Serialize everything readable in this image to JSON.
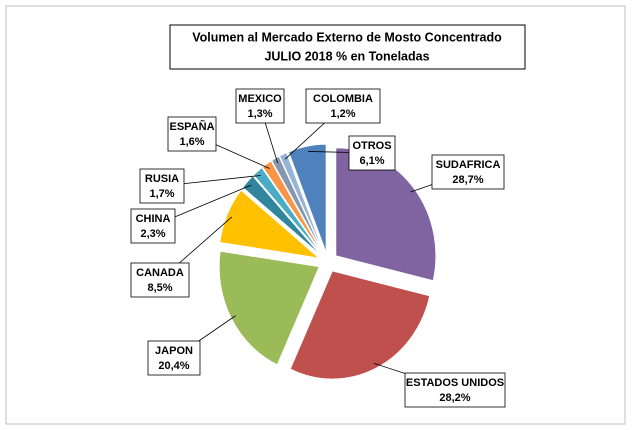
{
  "chart_data": {
    "type": "pie",
    "title": "Volumen al Mercado Externo de Mosto Concentrado",
    "subtitle": "JULIO 2018 % en Toneladas",
    "categories": [
      "SUDAFRICA",
      "ESTADOS UNIDOS",
      "JAPON",
      "CANADA",
      "CHINA",
      "RUSIA",
      "ESPAÑA",
      "MEXICO",
      "COLOMBIA",
      "OTROS"
    ],
    "values": [
      28.7,
      28.2,
      20.4,
      8.5,
      2.3,
      1.7,
      1.6,
      1.3,
      1.2,
      6.1
    ],
    "value_labels": [
      "28,7%",
      "28,2%",
      "20,4%",
      "8,5%",
      "2,3%",
      "1,7%",
      "1,6%",
      "1,3%",
      "1,2%",
      "6,1%"
    ],
    "colors": [
      "#8064a2",
      "#c0504d",
      "#9bbb59",
      "#ffc000",
      "#31859c",
      "#4bacc6",
      "#f79646",
      "#8496b0",
      "#95b3d7",
      "#4f81bd"
    ]
  }
}
